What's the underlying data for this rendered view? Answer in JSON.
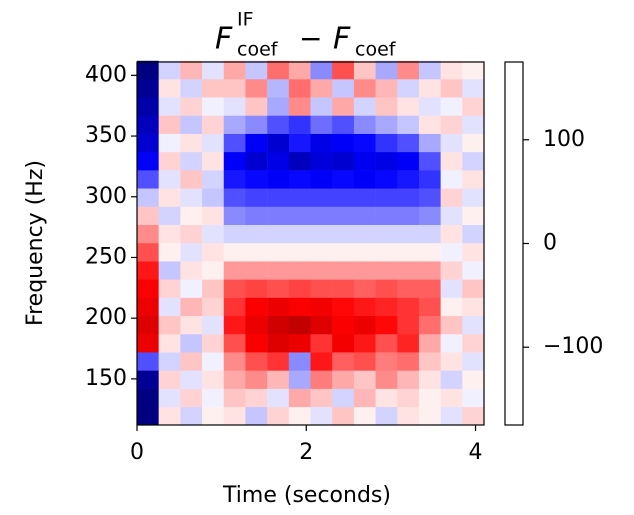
{
  "chart_data": {
    "type": "heatmap",
    "title": {
      "terms": [
        {
          "base": "F",
          "sup": "IF",
          "sub": "coef"
        },
        {
          "op": "−"
        },
        {
          "base": "F",
          "sub": "coef"
        }
      ]
    },
    "x_label": "Time (seconds)",
    "y_label": "Frequency (Hz)",
    "x": [
      0.128,
      0.384,
      0.641,
      0.897,
      1.153,
      1.409,
      1.666,
      1.922,
      2.178,
      2.434,
      2.691,
      2.947,
      3.203,
      3.459,
      3.716,
      3.972
    ],
    "y": [
      119.5,
      134.5,
      149.5,
      164.5,
      179.5,
      194.5,
      209.5,
      224.5,
      239.5,
      254.5,
      269.5,
      284.5,
      299.5,
      314.5,
      329.5,
      344.5,
      359.5,
      374.5,
      389.5,
      404.5
    ],
    "z": [
      [
        -150,
        10,
        -15,
        5,
        10,
        -20,
        15,
        5,
        -10,
        20,
        5,
        -15,
        10,
        5,
        -10,
        15
      ],
      [
        -150,
        -10,
        15,
        -5,
        20,
        15,
        -10,
        30,
        20,
        -15,
        25,
        10,
        15,
        5,
        10,
        -5
      ],
      [
        -140,
        15,
        -10,
        10,
        30,
        40,
        25,
        -30,
        45,
        30,
        20,
        40,
        25,
        10,
        -15,
        5
      ],
      [
        -60,
        -15,
        20,
        -5,
        40,
        60,
        70,
        -40,
        80,
        55,
        60,
        45,
        50,
        20,
        10,
        -10
      ],
      [
        100,
        10,
        -20,
        15,
        60,
        90,
        110,
        100,
        70,
        95,
        80,
        60,
        75,
        30,
        -5,
        15
      ],
      [
        110,
        20,
        10,
        -10,
        80,
        100,
        120,
        130,
        110,
        90,
        100,
        85,
        70,
        50,
        20,
        -10
      ],
      [
        100,
        -10,
        25,
        15,
        70,
        90,
        100,
        90,
        95,
        85,
        80,
        75,
        70,
        60,
        5,
        10
      ],
      [
        90,
        15,
        -5,
        20,
        60,
        65,
        60,
        65,
        60,
        60,
        55,
        60,
        55,
        55,
        -10,
        20
      ],
      [
        80,
        -20,
        10,
        5,
        35,
        35,
        35,
        35,
        35,
        35,
        35,
        35,
        35,
        35,
        15,
        -5
      ],
      [
        60,
        5,
        -10,
        10,
        5,
        5,
        5,
        5,
        5,
        5,
        5,
        5,
        5,
        5,
        -5,
        10
      ],
      [
        40,
        10,
        15,
        -10,
        -15,
        -15,
        -15,
        -15,
        -15,
        -15,
        -15,
        -15,
        -15,
        -15,
        10,
        -15
      ],
      [
        20,
        -15,
        5,
        10,
        -40,
        -45,
        -45,
        -45,
        -45,
        -45,
        -45,
        -45,
        -45,
        -40,
        -10,
        5
      ],
      [
        -20,
        10,
        -10,
        -20,
        -60,
        -65,
        -65,
        -65,
        -65,
        -65,
        -65,
        -65,
        -65,
        -60,
        15,
        -10
      ],
      [
        -60,
        -10,
        20,
        -15,
        -80,
        -85,
        -90,
        -85,
        -90,
        -85,
        -90,
        -85,
        -80,
        -70,
        -5,
        10
      ],
      [
        -90,
        15,
        -15,
        10,
        -90,
        -110,
        -100,
        -120,
        -105,
        -110,
        -95,
        -100,
        -90,
        -60,
        10,
        -15
      ],
      [
        -110,
        -5,
        10,
        -10,
        -60,
        -90,
        -110,
        -80,
        -100,
        -90,
        -85,
        -70,
        -60,
        -30,
        -10,
        5
      ],
      [
        -120,
        20,
        -20,
        15,
        -30,
        -40,
        -60,
        -70,
        -50,
        -60,
        -40,
        -30,
        -20,
        10,
        15,
        -10
      ],
      [
        -130,
        -10,
        15,
        -5,
        -10,
        20,
        -30,
        40,
        -20,
        30,
        -15,
        20,
        10,
        -10,
        -5,
        15
      ],
      [
        -140,
        10,
        -15,
        20,
        20,
        40,
        -25,
        50,
        30,
        -20,
        40,
        25,
        -15,
        10,
        20,
        -10
      ],
      [
        -150,
        -15,
        25,
        -10,
        30,
        -20,
        50,
        30,
        -40,
        60,
        20,
        -30,
        40,
        -20,
        10,
        5
      ]
    ],
    "xlim": [
      0,
      4.1
    ],
    "ylim": [
      112,
      411
    ],
    "xticks": [
      0,
      2,
      4
    ],
    "yticks": [
      150,
      200,
      250,
      300,
      350,
      400
    ],
    "colormap": "seismic",
    "clim": [
      -175,
      175
    ],
    "cticks": [
      {
        "value": -100,
        "label": "−100"
      },
      0,
      100
    ]
  }
}
